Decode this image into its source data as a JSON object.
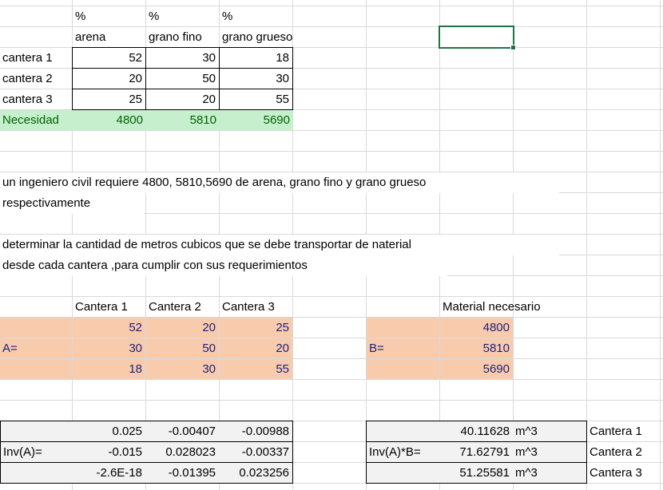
{
  "top": {
    "pct": [
      "%",
      "%",
      "%"
    ],
    "headers": [
      "arena",
      "grano fino",
      "grano grueso"
    ],
    "rows": [
      {
        "label": "cantera 1",
        "values": [
          "52",
          "30",
          "18"
        ]
      },
      {
        "label": "cantera 2",
        "values": [
          "20",
          "50",
          "30"
        ]
      },
      {
        "label": "cantera 3",
        "values": [
          "25",
          "20",
          "55"
        ]
      }
    ],
    "need": {
      "label": "Necesidad",
      "values": [
        "4800",
        "5810",
        "5690"
      ]
    }
  },
  "problem": {
    "line1": "un ingeniero civil requiere 4800, 5810,5690 de arena, grano fino y grano grueso",
    "line2": "respectivamente",
    "line3": "determinar la cantidad de metros cubicos que se debe transportar de naterial",
    "line4": "desde cada cantera ,para cumplir con sus requerimientos"
  },
  "matrixA": {
    "headers": [
      "Cantera 1",
      "Cantera 2",
      "Cantera 3"
    ],
    "label": "A=",
    "rows": [
      [
        "52",
        "20",
        "25"
      ],
      [
        "30",
        "50",
        "20"
      ],
      [
        "18",
        "30",
        "55"
      ]
    ]
  },
  "matrixB": {
    "header": "Material necesario",
    "label": "B=",
    "values": [
      "4800",
      "5810",
      "5690"
    ]
  },
  "invA": {
    "label": "Inv(A)=",
    "rows": [
      [
        "0.025",
        "-0.00407",
        "-0.00988"
      ],
      [
        "-0.015",
        "0.028023",
        "-0.00337"
      ],
      [
        "-2.6E-18",
        "-0.01395",
        "0.023256"
      ]
    ]
  },
  "result": {
    "label": "Inv(A)*B=",
    "values": [
      "40.11628",
      "71.62791",
      "51.25581"
    ],
    "units": [
      "m^3",
      "m^3",
      "m^3"
    ],
    "names": [
      "Cantera 1",
      "Cantera 2",
      "Cantera 3"
    ]
  },
  "colors": {
    "accent_green": "#217346",
    "need_fill": "#c6efce",
    "need_text": "#006100",
    "matrix_fill": "#f8cbad",
    "matrix_text": "#1f1f7a",
    "inverse_fill": "#f2f2f2"
  }
}
